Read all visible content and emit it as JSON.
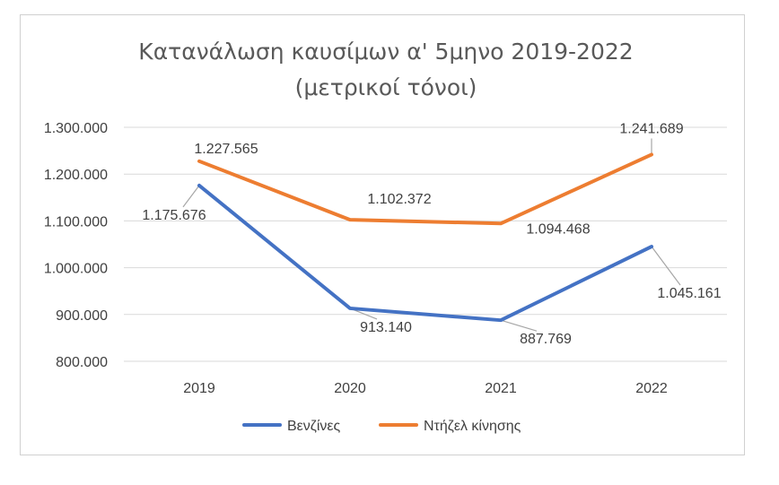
{
  "chart_data": {
    "type": "line",
    "title": "Κατανάλωση καυσίμων α' 5μηνο 2019-2022",
    "subtitle": "(μετρικοί τόνοι)",
    "categories": [
      "2019",
      "2020",
      "2021",
      "2022"
    ],
    "series": [
      {
        "name": "Βενζίνες",
        "color": "#4472C4",
        "values": [
          1175676,
          913140,
          887769,
          1045161
        ],
        "labels": [
          "1.175.676",
          "913.140",
          "887.769",
          "1.045.161"
        ]
      },
      {
        "name": "Ντήζελ κίνησης",
        "color": "#ED7D31",
        "values": [
          1227565,
          1102372,
          1094468,
          1241689
        ],
        "labels": [
          "1.227.565",
          "1.102.372",
          "1.094.468",
          "1.241.689"
        ]
      }
    ],
    "ylim": [
      800000,
      1300000
    ],
    "yticks": [
      800000,
      900000,
      1000000,
      1100000,
      1200000,
      1300000
    ],
    "ytick_labels": [
      "800.000",
      "900.000",
      "1.000.000",
      "1.100.000",
      "1.200.000",
      "1.300.000"
    ],
    "grid": true,
    "legend_position": "bottom",
    "xlabel": "",
    "ylabel": ""
  }
}
